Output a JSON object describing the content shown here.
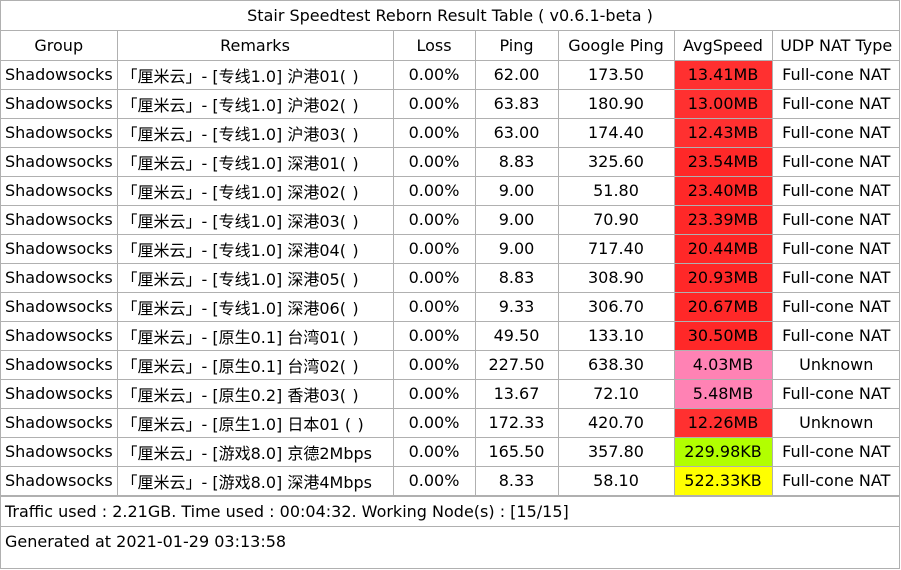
{
  "title": "Stair Speedtest Reborn Result Table ( v0.6.1-beta )",
  "columns": [
    "Group",
    "Remarks",
    "Loss",
    "Ping",
    "Google Ping",
    "AvgSpeed",
    "UDP NAT Type"
  ],
  "rows": [
    {
      "group": "Shadowsocks",
      "remarks": "「厘米云」- [专线1.0] 沪港01(  )",
      "loss": "0.00%",
      "ping": "62.00",
      "google_ping": "173.50",
      "avg_speed": "13.41MB",
      "speed_color": "#ff3030",
      "nat": "Full-cone NAT"
    },
    {
      "group": "Shadowsocks",
      "remarks": "「厘米云」- [专线1.0] 沪港02(  )",
      "loss": "0.00%",
      "ping": "63.83",
      "google_ping": "180.90",
      "avg_speed": "13.00MB",
      "speed_color": "#ff3030",
      "nat": "Full-cone NAT"
    },
    {
      "group": "Shadowsocks",
      "remarks": "「厘米云」- [专线1.0] 沪港03(  )",
      "loss": "0.00%",
      "ping": "63.00",
      "google_ping": "174.40",
      "avg_speed": "12.43MB",
      "speed_color": "#ff3030",
      "nat": "Full-cone NAT"
    },
    {
      "group": "Shadowsocks",
      "remarks": "「厘米云」- [专线1.0] 深港01(  )",
      "loss": "0.00%",
      "ping": "8.83",
      "google_ping": "325.60",
      "avg_speed": "23.54MB",
      "speed_color": "#ff2828",
      "nat": "Full-cone NAT"
    },
    {
      "group": "Shadowsocks",
      "remarks": "「厘米云」- [专线1.0] 深港02(  )",
      "loss": "0.00%",
      "ping": "9.00",
      "google_ping": "51.80",
      "avg_speed": "23.40MB",
      "speed_color": "#ff2828",
      "nat": "Full-cone NAT"
    },
    {
      "group": "Shadowsocks",
      "remarks": "「厘米云」- [专线1.0] 深港03(  )",
      "loss": "0.00%",
      "ping": "9.00",
      "google_ping": "70.90",
      "avg_speed": "23.39MB",
      "speed_color": "#ff2828",
      "nat": "Full-cone NAT"
    },
    {
      "group": "Shadowsocks",
      "remarks": "「厘米云」- [专线1.0] 深港04(  )",
      "loss": "0.00%",
      "ping": "9.00",
      "google_ping": "717.40",
      "avg_speed": "20.44MB",
      "speed_color": "#ff2828",
      "nat": "Full-cone NAT"
    },
    {
      "group": "Shadowsocks",
      "remarks": "「厘米云」- [专线1.0] 深港05(  )",
      "loss": "0.00%",
      "ping": "8.83",
      "google_ping": "308.90",
      "avg_speed": "20.93MB",
      "speed_color": "#ff2828",
      "nat": "Full-cone NAT"
    },
    {
      "group": "Shadowsocks",
      "remarks": "「厘米云」- [专线1.0] 深港06(  )",
      "loss": "0.00%",
      "ping": "9.33",
      "google_ping": "306.70",
      "avg_speed": "20.67MB",
      "speed_color": "#ff2828",
      "nat": "Full-cone NAT"
    },
    {
      "group": "Shadowsocks",
      "remarks": "「厘米云」- [原生0.1] 台湾01(  )",
      "loss": "0.00%",
      "ping": "49.50",
      "google_ping": "133.10",
      "avg_speed": "30.50MB",
      "speed_color": "#ff2828",
      "nat": "Full-cone NAT"
    },
    {
      "group": "Shadowsocks",
      "remarks": "「厘米云」- [原生0.1] 台湾02(  )",
      "loss": "0.00%",
      "ping": "227.50",
      "google_ping": "638.30",
      "avg_speed": "4.03MB",
      "speed_color": "#ff82b4",
      "nat": "Unknown"
    },
    {
      "group": "Shadowsocks",
      "remarks": "「厘米云」- [原生0.2] 香港03(  )",
      "loss": "0.00%",
      "ping": "13.67",
      "google_ping": "72.10",
      "avg_speed": "5.48MB",
      "speed_color": "#ff82b4",
      "nat": "Full-cone NAT"
    },
    {
      "group": "Shadowsocks",
      "remarks": "「厘米云」- [原生1.0] 日本01 (  )",
      "loss": "0.00%",
      "ping": "172.33",
      "google_ping": "420.70",
      "avg_speed": "12.26MB",
      "speed_color": "#ff3030",
      "nat": "Unknown"
    },
    {
      "group": "Shadowsocks",
      "remarks": "「厘米云」- [游戏8.0] 京德2Mbps",
      "loss": "0.00%",
      "ping": "165.50",
      "google_ping": "357.80",
      "avg_speed": "229.98KB",
      "speed_color": "#b2ff00",
      "nat": "Full-cone NAT"
    },
    {
      "group": "Shadowsocks",
      "remarks": "「厘米云」- [游戏8.0] 深港4Mbps",
      "loss": "0.00%",
      "ping": "8.33",
      "google_ping": "58.10",
      "avg_speed": "522.33KB",
      "speed_color": "#ffff00",
      "nat": "Full-cone NAT"
    }
  ],
  "footer": {
    "summary": "Traffic used : 2.21GB. Time used : 00:04:32. Working Node(s) : [15/15]",
    "generated": "Generated at 2021-01-29 03:13:58"
  },
  "colors": {
    "border": "#b0b0b0",
    "background": "#ffffff"
  }
}
